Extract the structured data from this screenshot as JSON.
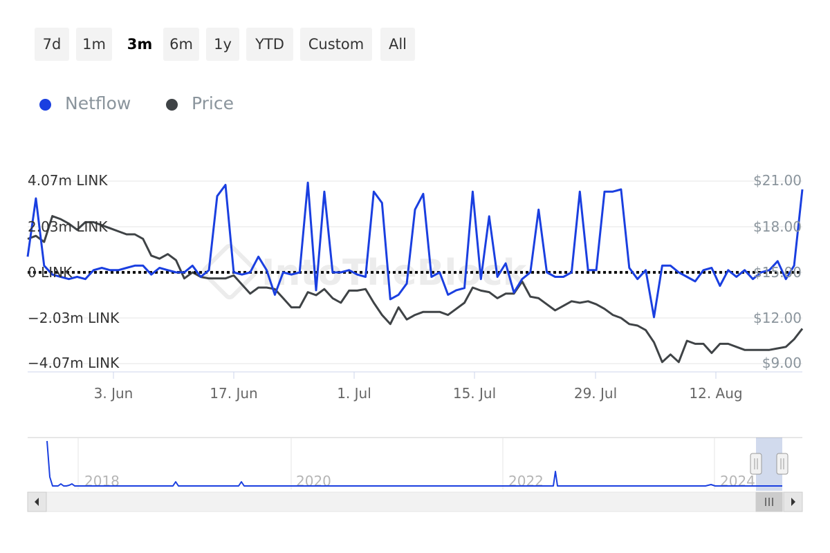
{
  "range_selector": {
    "buttons": [
      "7d",
      "1m",
      "3m",
      "6m",
      "1y",
      "YTD",
      "Custom",
      "All"
    ],
    "active": "3m"
  },
  "legend": {
    "items": [
      {
        "label": "Netflow",
        "color": "#1a3fe0"
      },
      {
        "label": "Price",
        "color": "#3f4346"
      }
    ]
  },
  "watermark": "IntoTheBlock",
  "chart_data": {
    "type": "line",
    "x_start": "2024-05-24",
    "x_end": "2024-08-23",
    "x_ticks": [
      "3. Jun",
      "17. Jun",
      "1. Jul",
      "15. Jul",
      "29. Jul",
      "12. Aug"
    ],
    "y_left": {
      "ticks": [
        "4.07m LINK",
        "2.03m LINK",
        "0 LINK",
        "−2.03m LINK",
        "−4.07m LINK"
      ],
      "range": [
        -4.07,
        4.07
      ],
      "unit": "m LINK"
    },
    "y_right": {
      "ticks": [
        "$21.00",
        "$18.00",
        "$15.00",
        "$12.00",
        "$9.00"
      ],
      "range": [
        9,
        21
      ],
      "unit": "USD"
    },
    "zero_line": true,
    "series": [
      {
        "name": "Netflow",
        "axis": "left",
        "color": "#1a3fe0",
        "values": [
          0.7,
          3.3,
          0.3,
          -0.1,
          -0.2,
          -0.3,
          -0.2,
          -0.3,
          0.1,
          0.2,
          0.1,
          0.1,
          0.2,
          0.3,
          0.3,
          -0.1,
          0.2,
          0.1,
          0.0,
          0.0,
          0.3,
          -0.2,
          0.1,
          3.4,
          3.9,
          0.0,
          -0.1,
          0.0,
          0.7,
          0.1,
          -1.0,
          0.0,
          -0.1,
          0.0,
          4.0,
          -0.8,
          3.6,
          0.0,
          0.0,
          0.1,
          -0.1,
          -0.2,
          3.6,
          3.1,
          -1.2,
          -1.0,
          -0.5,
          2.8,
          3.5,
          -0.2,
          0.0,
          -1.0,
          -0.8,
          -0.7,
          3.6,
          -0.3,
          2.5,
          -0.2,
          0.4,
          -0.9,
          -0.3,
          0.0,
          2.8,
          0.0,
          -0.2,
          -0.2,
          0.0,
          3.6,
          0.1,
          0.1,
          3.6,
          3.6,
          3.7,
          0.2,
          -0.3,
          0.1,
          -2.0,
          0.3,
          0.3,
          0.0,
          -0.2,
          -0.4,
          0.1,
          0.2,
          -0.6,
          0.1,
          -0.2,
          0.1,
          -0.3,
          0.0,
          0.1,
          0.5,
          -0.3,
          0.3,
          3.7
        ]
      },
      {
        "name": "Price",
        "axis": "right",
        "color": "#3f4346",
        "values": [
          17.2,
          17.4,
          17.0,
          18.7,
          18.5,
          18.2,
          17.8,
          18.3,
          18.3,
          18.1,
          17.9,
          17.7,
          17.5,
          17.5,
          17.2,
          16.1,
          15.9,
          16.2,
          15.8,
          14.6,
          15.0,
          14.7,
          14.6,
          14.6,
          14.6,
          14.8,
          14.2,
          13.6,
          14.0,
          14.0,
          13.9,
          13.3,
          12.7,
          12.7,
          13.7,
          13.5,
          13.9,
          13.3,
          13.0,
          13.8,
          13.8,
          13.9,
          13.0,
          12.2,
          11.6,
          12.7,
          11.9,
          12.2,
          12.4,
          12.4,
          12.4,
          12.2,
          12.6,
          13.0,
          14.0,
          13.8,
          13.7,
          13.3,
          13.6,
          13.6,
          14.4,
          13.4,
          13.3,
          12.9,
          12.5,
          12.8,
          13.1,
          13.0,
          13.1,
          12.9,
          12.6,
          12.2,
          12.0,
          11.6,
          11.5,
          11.2,
          10.4,
          9.1,
          9.6,
          9.1,
          10.5,
          10.3,
          10.3,
          9.7,
          10.3,
          10.3,
          10.1,
          9.9,
          9.9,
          9.9,
          9.9,
          10.0,
          10.1,
          10.6,
          11.3
        ]
      }
    ],
    "navigator": {
      "x_labels": [
        "2018",
        "2020",
        "2022",
        "2024"
      ]
    }
  }
}
